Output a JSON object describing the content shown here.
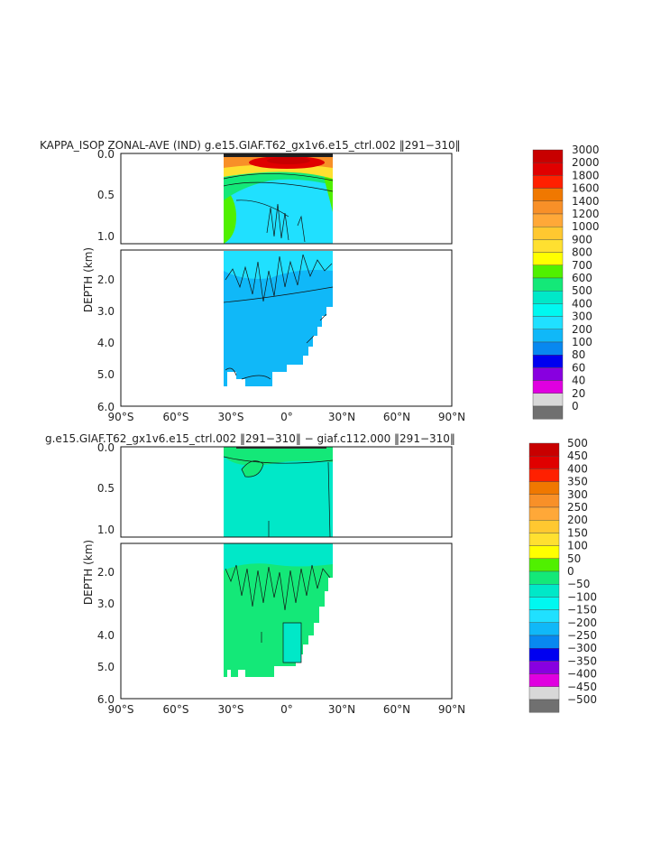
{
  "chart_data": [
    {
      "type": "heatmap",
      "title": "KAPPA_ISOP ZONAL-AVE (IND) g.e15.GIAF.T62_gx1v6.e15_ctrl.002 ‖291−310‖",
      "ylabel": "DEPTH (km)",
      "x_ticks": [
        "90°S",
        "60°S",
        "30°S",
        "0°",
        "30°N",
        "60°N",
        "90°N"
      ],
      "xlim": [
        -90,
        90
      ],
      "upper_y_ticks": [
        "0.0",
        "0.5",
        "1.0"
      ],
      "lower_y_ticks": [
        "2.0",
        "3.0",
        "4.0",
        "5.0",
        "6.0"
      ],
      "upper_ylim": [
        0,
        1.1
      ],
      "lower_ylim": [
        1.1,
        6.0
      ],
      "data_lat_range": [
        -34,
        26
      ],
      "colorbar": {
        "levels": [
          "3000",
          "2000",
          "1800",
          "1600",
          "1400",
          "1200",
          "1000",
          "900",
          "800",
          "700",
          "600",
          "500",
          "400",
          "300",
          "200",
          "100",
          "80",
          "60",
          "40",
          "20",
          "0"
        ],
        "colors": [
          "#c80000",
          "#e00000",
          "#ff2000",
          "#f07800",
          "#f89028",
          "#ffa838",
          "#ffc830",
          "#ffe030",
          "#ffff00",
          "#50f000",
          "#14e878",
          "#00e8c8",
          "#00f8f0",
          "#20e0ff",
          "#10b8f8",
          "#0888f0",
          "#0000f0",
          "#8800e0",
          "#e000e0",
          "#d8d8d8",
          "#707070"
        ]
      }
    },
    {
      "type": "heatmap",
      "title": "g.e15.GIAF.T62_gx1v6.e15_ctrl.002 ‖291−310‖ − giaf.c112.000 ‖291−310‖",
      "ylabel": "DEPTH (km)",
      "x_ticks": [
        "90°S",
        "60°S",
        "30°S",
        "0°",
        "30°N",
        "60°N",
        "90°N"
      ],
      "xlim": [
        -90,
        90
      ],
      "upper_y_ticks": [
        "0.0",
        "0.5",
        "1.0"
      ],
      "lower_y_ticks": [
        "2.0",
        "3.0",
        "4.0",
        "5.0",
        "6.0"
      ],
      "upper_ylim": [
        0,
        1.1
      ],
      "lower_ylim": [
        1.1,
        6.0
      ],
      "data_lat_range": [
        -34,
        26
      ],
      "colorbar": {
        "levels": [
          "500",
          "450",
          "400",
          "350",
          "300",
          "250",
          "200",
          "150",
          "100",
          "50",
          "0",
          "−50",
          "−100",
          "−150",
          "−200",
          "−250",
          "−300",
          "−350",
          "−400",
          "−450",
          "−500"
        ],
        "colors": [
          "#c80000",
          "#e00000",
          "#ff2000",
          "#f07800",
          "#f89028",
          "#ffa838",
          "#ffc830",
          "#ffe030",
          "#ffff00",
          "#50f000",
          "#14e878",
          "#00e8c8",
          "#00f8f0",
          "#20e0ff",
          "#10b8f8",
          "#0888f0",
          "#0000f0",
          "#8800e0",
          "#e000e0",
          "#d8d8d8",
          "#707070"
        ]
      }
    }
  ]
}
